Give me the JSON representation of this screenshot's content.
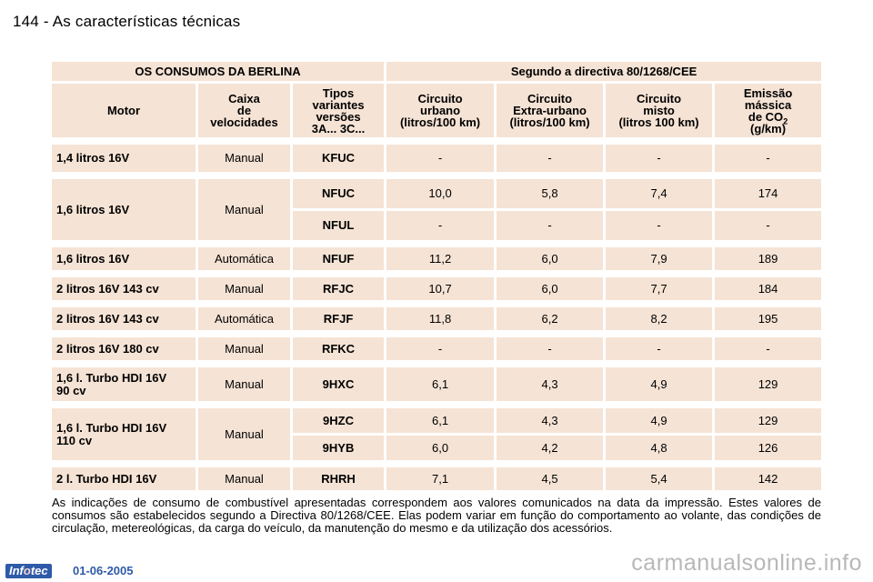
{
  "page": {
    "title": "144 - As características técnicas"
  },
  "table": {
    "title_left": "OS CONSUMOS DA BERLINA",
    "title_right": "Segundo a directiva 80/1268/CEE",
    "headers": {
      "motor": "Motor",
      "caixa": [
        "Caixa",
        "de",
        "velocidades"
      ],
      "tipos": [
        "Tipos",
        "variantes",
        "versões",
        "3A... 3C..."
      ],
      "urbano": [
        "Circuito",
        "urbano",
        "(litros/100 km)"
      ],
      "extra": [
        "Circuito",
        "Extra-urbano",
        "(litros/100 km)"
      ],
      "misto": [
        "Circuito",
        "misto",
        "(litros 100 km)"
      ],
      "emissao_1": "Emissão",
      "emissao_2": "mássica",
      "emissao_3": "de CO",
      "emissao_sub": "2",
      "emissao_4": "(g/km)"
    },
    "rows": [
      {
        "motor": "1,4 litros 16V",
        "caixa": "Manual",
        "code": "KFUC",
        "urbano": "-",
        "extra": "-",
        "misto": "-",
        "co2": "-"
      },
      {
        "motor": "1,6 litros 16V",
        "caixa": "Manual",
        "code": "NFUC",
        "urbano": "10,0",
        "extra": "5,8",
        "misto": "7,4",
        "co2": "174"
      },
      {
        "code": "NFUL",
        "urbano": "-",
        "extra": "-",
        "misto": "-",
        "co2": "-"
      },
      {
        "motor": "1,6 litros 16V",
        "caixa": "Automática",
        "code": "NFUF",
        "urbano": "11,2",
        "extra": "6,0",
        "misto": "7,9",
        "co2": "189"
      },
      {
        "motor": "2 litros 16V 143 cv",
        "caixa": "Manual",
        "code": "RFJC",
        "urbano": "10,7",
        "extra": "6,0",
        "misto": "7,7",
        "co2": "184"
      },
      {
        "motor": "2 litros 16V 143 cv",
        "caixa": "Automática",
        "code": "RFJF",
        "urbano": "11,8",
        "extra": "6,2",
        "misto": "8,2",
        "co2": "195"
      },
      {
        "motor": "2 litros 16V 180 cv",
        "caixa": "Manual",
        "code": "RFKC",
        "urbano": "-",
        "extra": "-",
        "misto": "-",
        "co2": "-"
      },
      {
        "motor": [
          "1,6 l. Turbo HDI 16V",
          "90 cv"
        ],
        "caixa": "Manual",
        "code": "9HXC",
        "urbano": "6,1",
        "extra": "4,3",
        "misto": "4,9",
        "co2": "129"
      },
      {
        "motor": [
          "1,6 l. Turbo HDI 16V",
          "110 cv"
        ],
        "caixa": "Manual",
        "code": "9HZC",
        "urbano": "6,1",
        "extra": "4,3",
        "misto": "4,9",
        "co2": "129"
      },
      {
        "code": "9HYB",
        "urbano": "6,0",
        "extra": "4,2",
        "misto": "4,8",
        "co2": "126"
      },
      {
        "motor": "2 l. Turbo HDI 16V",
        "caixa": "Manual",
        "code": "RHRH",
        "urbano": "7,1",
        "extra": "4,5",
        "misto": "5,4",
        "co2": "142"
      }
    ]
  },
  "footnote": "As indicações de consumo de combustível apresentadas correspondem aos valores comunicados na data da impressão. Estes valores de consumos são estabelecidos segundo a Directiva 80/1268/CEE. Elas podem variar em função do comportamento ao volante, das condições de circulação, metereológicas, da carga do veículo, da manutenção do mesmo e da utilização dos acessórios.",
  "footer": {
    "logo_a": "Inf",
    "logo_b": "o",
    "logo_c": "tec",
    "date": "01-06-2005",
    "watermark": "carmanualsonline.info"
  }
}
